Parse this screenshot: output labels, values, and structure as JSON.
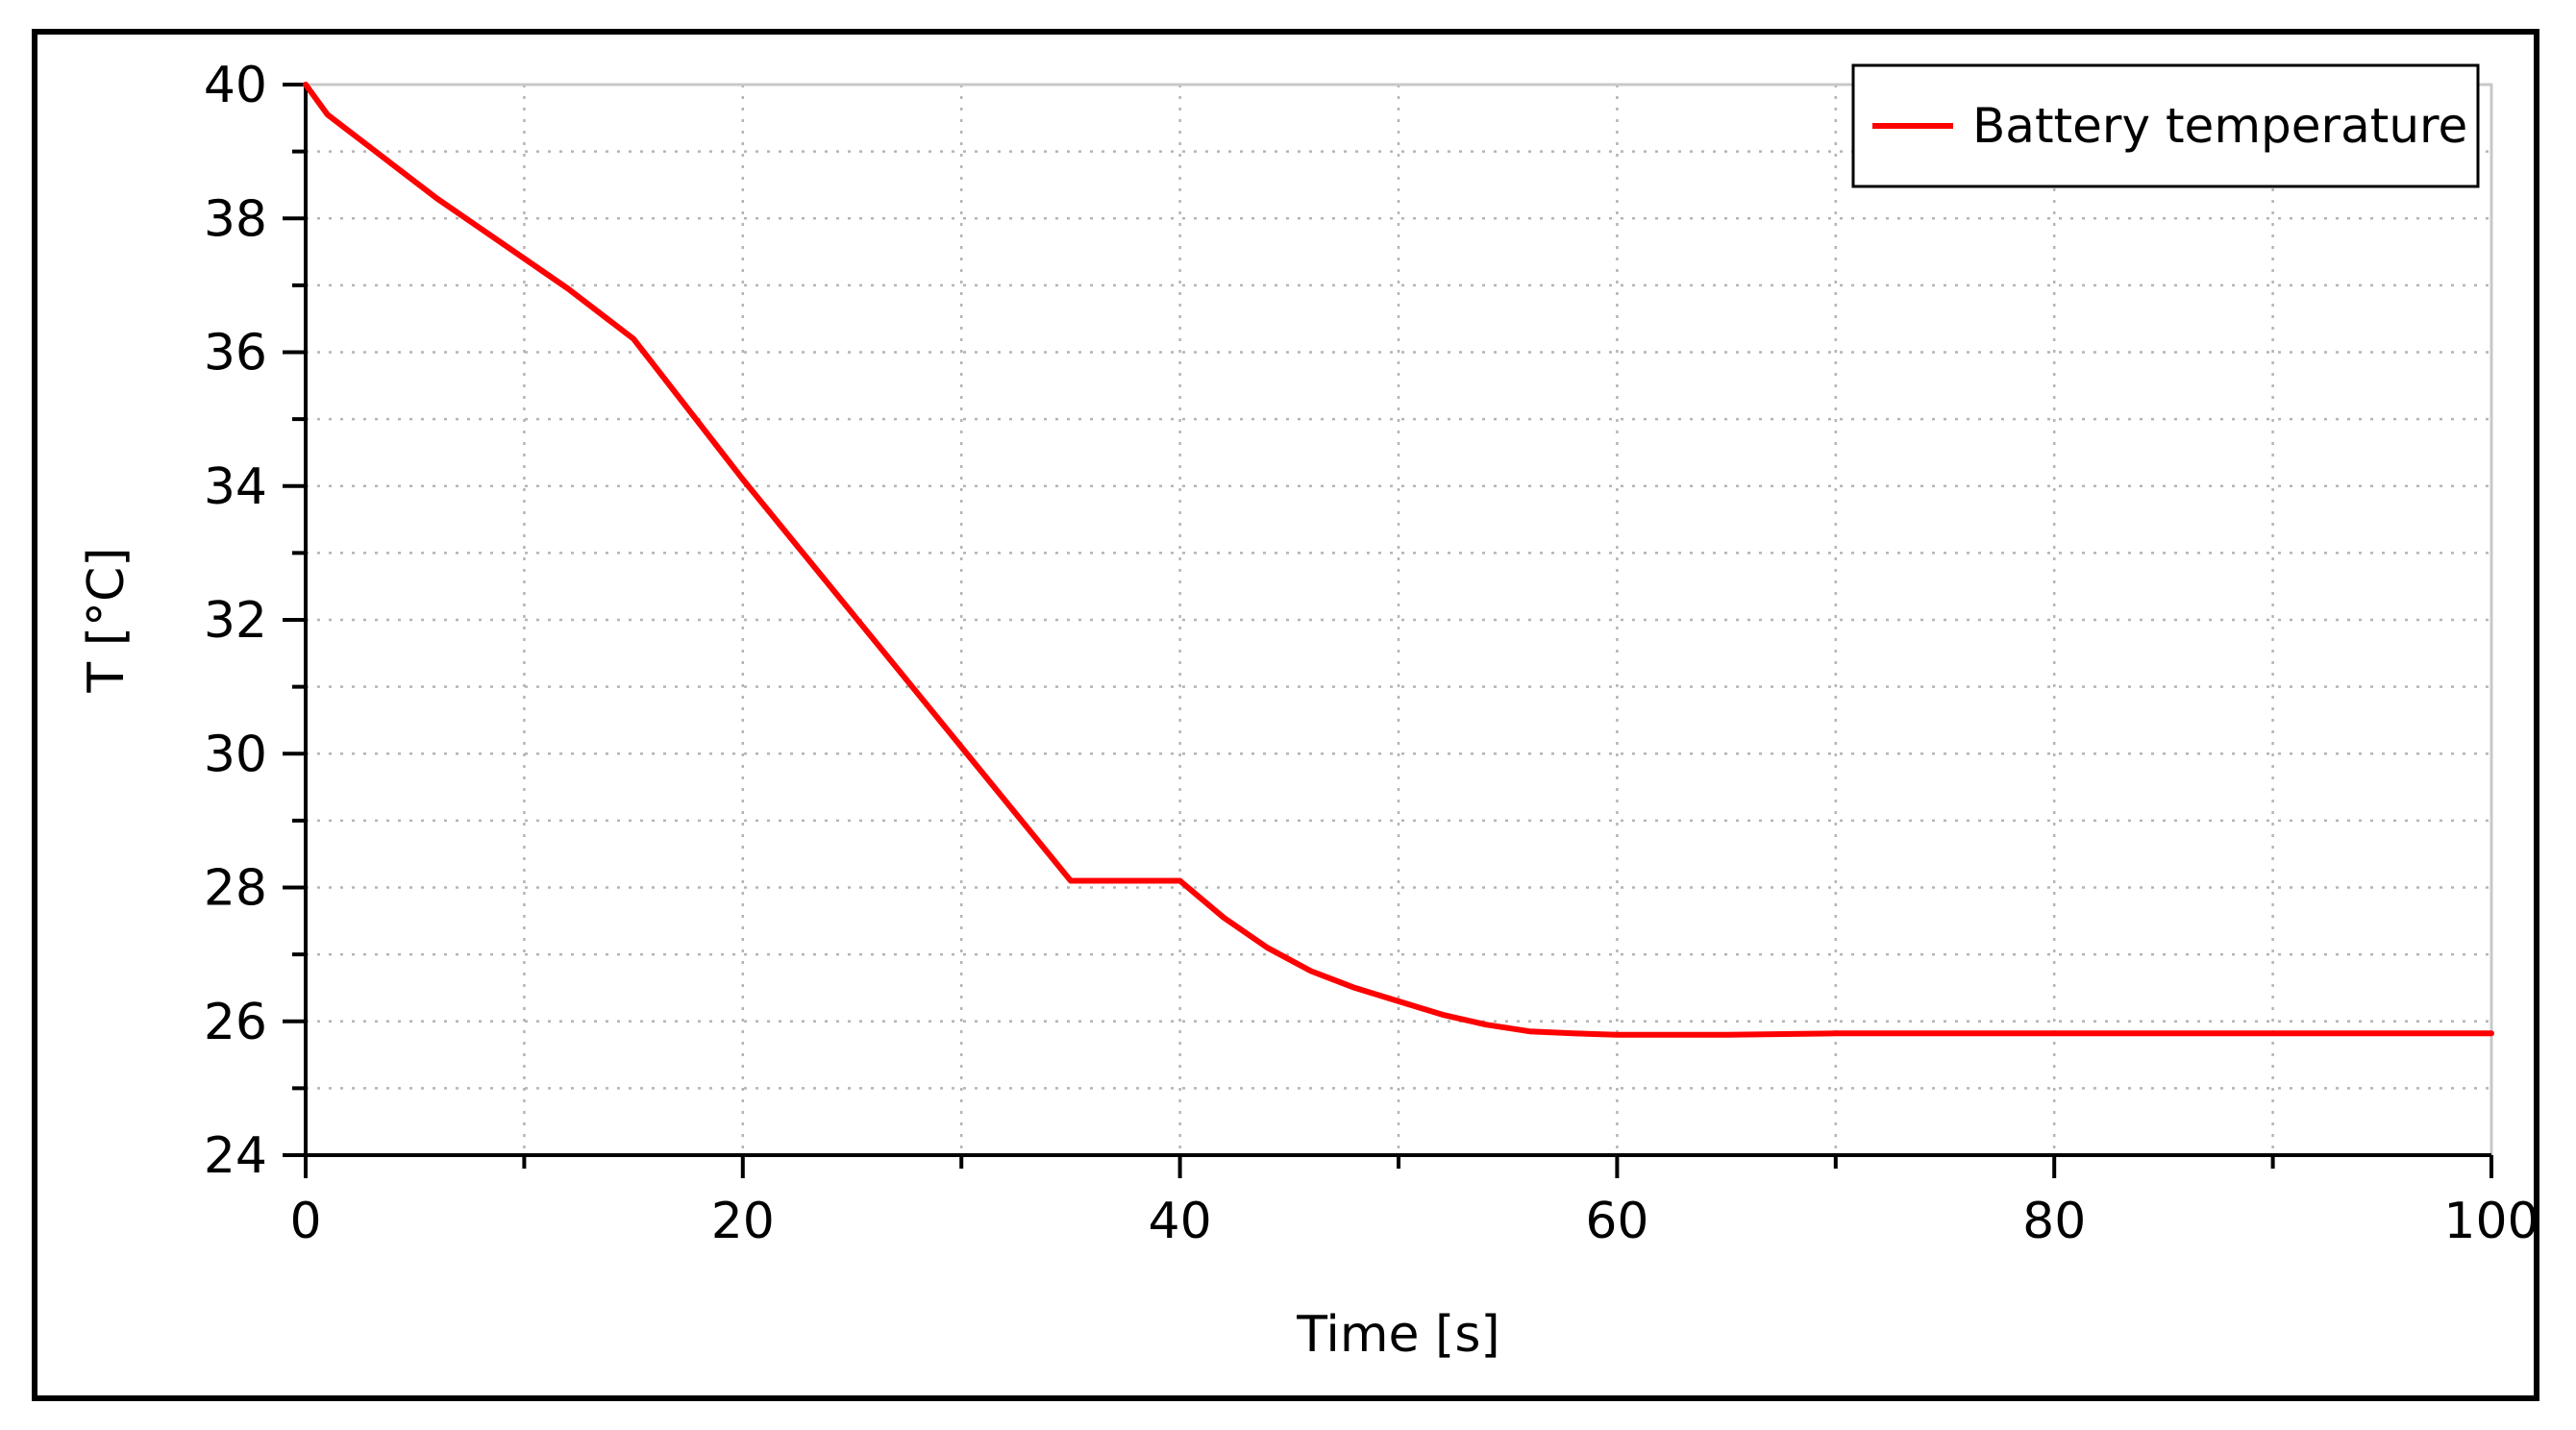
{
  "chart_data": {
    "type": "line",
    "title": "",
    "xlabel": "Time [s]",
    "ylabel": "T [°C]",
    "xlim": [
      0,
      100
    ],
    "ylim": [
      24,
      40
    ],
    "x_ticks": [
      0,
      20,
      40,
      60,
      80,
      100
    ],
    "y_ticks": [
      24,
      26,
      28,
      30,
      32,
      34,
      36,
      38,
      40
    ],
    "x_tick_labels": [
      "0",
      "20",
      "40",
      "60",
      "80",
      "100"
    ],
    "y_tick_labels": [
      "24",
      "26",
      "28",
      "30",
      "32",
      "34",
      "36",
      "38",
      "40"
    ],
    "x_minor_step": 10,
    "y_minor_step": 1,
    "grid": true,
    "legend_position": "top-right",
    "series": [
      {
        "name": "Battery temperature",
        "color": "#ff0000",
        "x": [
          0,
          1,
          2,
          4,
          6,
          8,
          10,
          12,
          15,
          20,
          25,
          30,
          35,
          40,
          42,
          44,
          46,
          48,
          50,
          52,
          54,
          56,
          58,
          60,
          65,
          70,
          80,
          90,
          100
        ],
        "y": [
          40.0,
          39.55,
          39.3,
          38.8,
          38.3,
          37.85,
          37.4,
          36.95,
          36.2,
          34.1,
          32.1,
          30.1,
          28.1,
          28.1,
          27.55,
          27.1,
          26.75,
          26.5,
          26.3,
          26.1,
          25.95,
          25.85,
          25.82,
          25.8,
          25.8,
          25.82,
          25.82,
          25.82,
          25.82
        ]
      }
    ]
  }
}
